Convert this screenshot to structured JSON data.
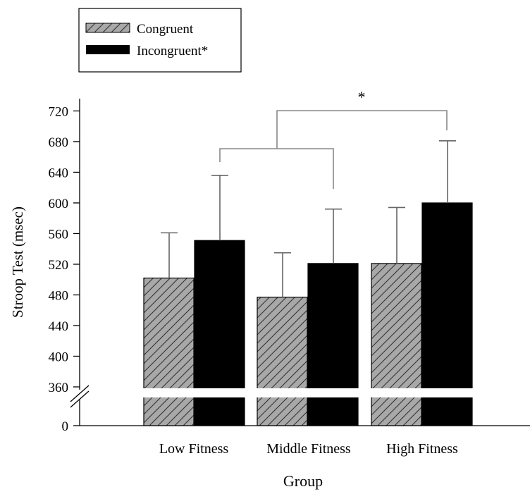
{
  "chart_data": {
    "type": "bar",
    "title": "",
    "xlabel": "Group",
    "ylabel": "Stroop Test (msec)",
    "categories": [
      "Low Fitness",
      "Middle Fitness",
      "High Fitness"
    ],
    "series": [
      {
        "name": "Congruent",
        "values": [
          502,
          477,
          521
        ],
        "error": [
          59,
          58,
          73
        ],
        "fill": "hatched-gray"
      },
      {
        "name": "Incongruent*",
        "values": [
          551,
          521,
          600
        ],
        "error": [
          85,
          71,
          81
        ],
        "fill": "black"
      }
    ],
    "y_ticks": [
      0,
      360,
      400,
      440,
      480,
      520,
      560,
      600,
      640,
      680,
      720
    ],
    "ylim": [
      360,
      740
    ],
    "axis_break": true,
    "grid": false,
    "legend_position": "top-left",
    "significance": [
      {
        "label": "*",
        "from": "Low Fitness & Middle Fitness",
        "to": "High Fitness"
      }
    ],
    "colors": {
      "hatch_fill": "#a8a8a8",
      "bar_black": "#000000"
    }
  }
}
